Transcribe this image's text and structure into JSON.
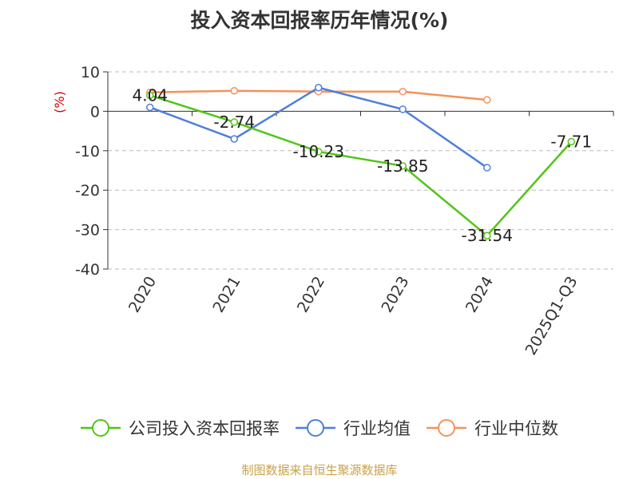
{
  "chart_data": {
    "type": "line",
    "title": "投入资本回报率历年情况(%)",
    "ylabel": "(%)",
    "ylim": [
      -40,
      10
    ],
    "yticks": [
      10,
      0,
      -10,
      -20,
      -30,
      -40
    ],
    "categories": [
      "2020",
      "2021",
      "2022",
      "2023",
      "2024",
      "2025Q1-Q3"
    ],
    "grid": true,
    "legend_position": "bottom",
    "series": [
      {
        "name": "公司投入资本回报率",
        "color": "#52c41a",
        "values": [
          4.04,
          -2.74,
          -10.23,
          -13.85,
          -31.54,
          -7.71
        ],
        "labels": [
          "4.04",
          "-2.74",
          "-10.23",
          "-13.85",
          "-31.54",
          "-7.71"
        ]
      },
      {
        "name": "行业均值",
        "color": "#4f7fd9",
        "values": [
          1.0,
          -7.0,
          6.0,
          0.5,
          -14.3,
          null
        ]
      },
      {
        "name": "行业中位数",
        "color": "#f5915a",
        "values": [
          4.8,
          5.2,
          5.0,
          5.0,
          2.9,
          null
        ]
      }
    ]
  },
  "source": "制图数据来自恒生聚源数据库"
}
